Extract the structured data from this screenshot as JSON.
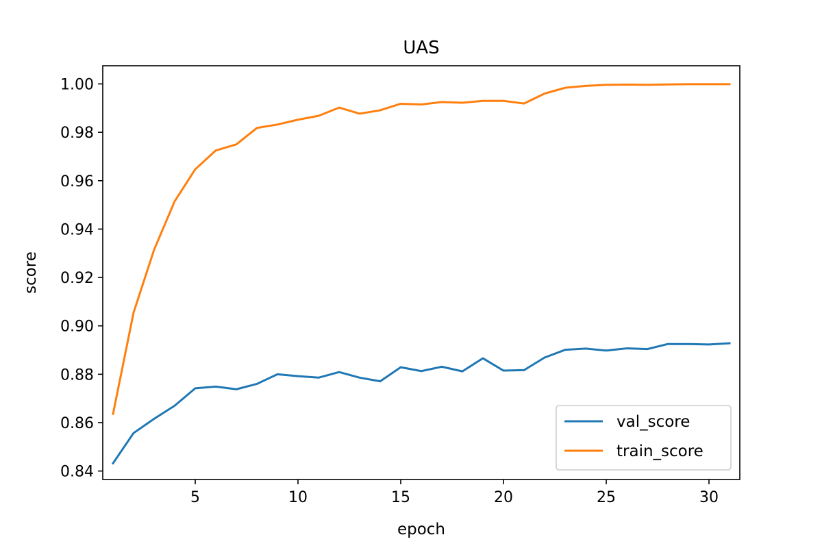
{
  "chart_data": {
    "type": "line",
    "title": "UAS",
    "xlabel": "epoch",
    "ylabel": "score",
    "xlim": [
      0.5,
      31.5
    ],
    "ylim": [
      0.8365,
      1.0075
    ],
    "xticks": [
      5,
      10,
      15,
      20,
      25,
      30
    ],
    "yticks": [
      0.84,
      0.86,
      0.88,
      0.9,
      0.92,
      0.94,
      0.96,
      0.98,
      1.0
    ],
    "ytick_labels": [
      "0.84",
      "0.86",
      "0.88",
      "0.90",
      "0.92",
      "0.94",
      "0.96",
      "0.98",
      "1.00"
    ],
    "grid": false,
    "legend_position": "bottom-right",
    "x": [
      1,
      2,
      3,
      4,
      5,
      6,
      7,
      8,
      9,
      10,
      11,
      12,
      13,
      14,
      15,
      16,
      17,
      18,
      19,
      20,
      21,
      22,
      23,
      24,
      25,
      26,
      27,
      28,
      29,
      30,
      31
    ],
    "series": [
      {
        "name": "val_score",
        "color": "#1f77b4",
        "values": [
          0.8432,
          0.8557,
          0.8616,
          0.867,
          0.8742,
          0.8749,
          0.8738,
          0.876,
          0.88,
          0.8792,
          0.8786,
          0.8809,
          0.8786,
          0.8771,
          0.8829,
          0.8813,
          0.8831,
          0.8812,
          0.8866,
          0.8815,
          0.8817,
          0.8869,
          0.8901,
          0.8906,
          0.8898,
          0.8907,
          0.8904,
          0.8925,
          0.8925,
          0.8923,
          0.8928
        ]
      },
      {
        "name": "train_score",
        "color": "#ff7f0e",
        "values": [
          0.8636,
          0.9055,
          0.9315,
          0.9515,
          0.9647,
          0.9725,
          0.975,
          0.9818,
          0.9832,
          0.9852,
          0.9868,
          0.9902,
          0.9877,
          0.9891,
          0.9918,
          0.9915,
          0.9925,
          0.9922,
          0.993,
          0.993,
          0.9919,
          0.996,
          0.9984,
          0.9992,
          0.9996,
          0.9997,
          0.9996,
          0.9998,
          0.9999,
          0.9999,
          0.9999
        ]
      }
    ]
  }
}
